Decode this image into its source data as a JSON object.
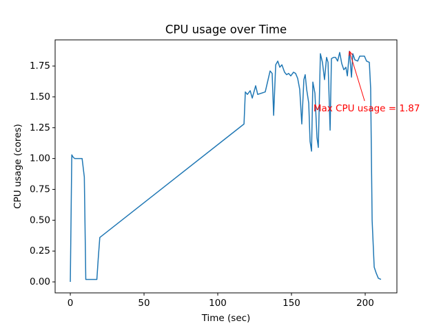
{
  "chart_data": {
    "type": "line",
    "title": "CPU usage over Time",
    "xlabel": "Time (sec)",
    "ylabel": "CPU usage (cores)",
    "x": [
      0,
      1,
      2,
      3,
      5,
      8,
      9.5,
      10.5,
      14,
      17,
      18,
      19,
      20,
      117.8,
      118.7,
      120.1,
      122.0,
      123.4,
      125.7,
      127.1,
      132.2,
      135.5,
      136.9,
      137.9,
      139.3,
      140.7,
      142.1,
      143.5,
      145.3,
      146.7,
      148.1,
      149.5,
      151.4,
      152.8,
      154.2,
      155.6,
      157.0,
      158.4,
      159.3,
      160.3,
      161.7,
      162.6,
      163.6,
      164.5,
      165.9,
      167.3,
      168.2,
      169.6,
      171.0,
      172.4,
      173.8,
      174.8,
      176.2,
      177.1,
      178.5,
      179.9,
      181.3,
      182.7,
      184.1,
      185.5,
      186.9,
      187.9,
      189.3,
      190.7,
      191.6,
      193.0,
      194.9,
      196.3,
      197.7,
      199.5,
      200.9,
      202.8,
      203.7,
      204.7,
      206.1,
      207.5,
      208.9,
      210.7
    ],
    "series": [
      {
        "name": "CPU usage",
        "color": "#1f77b4",
        "values": [
          0.0,
          1.03,
          1.01,
          1.0,
          1.0,
          1.0,
          0.85,
          0.02,
          0.02,
          0.02,
          0.02,
          0.2,
          0.36,
          1.28,
          1.54,
          1.52,
          1.55,
          1.49,
          1.59,
          1.52,
          1.54,
          1.71,
          1.69,
          1.35,
          1.76,
          1.79,
          1.74,
          1.76,
          1.7,
          1.68,
          1.69,
          1.67,
          1.7,
          1.69,
          1.65,
          1.56,
          1.28,
          1.64,
          1.68,
          1.56,
          1.45,
          1.14,
          1.06,
          1.62,
          1.53,
          1.17,
          1.09,
          1.85,
          1.78,
          1.64,
          1.82,
          1.78,
          1.23,
          1.81,
          1.82,
          1.82,
          1.79,
          1.86,
          1.77,
          1.72,
          1.74,
          1.67,
          1.87,
          1.66,
          1.85,
          1.8,
          1.79,
          1.83,
          1.83,
          1.83,
          1.79,
          1.78,
          1.57,
          0.5,
          0.12,
          0.07,
          0.03,
          0.02
        ]
      }
    ],
    "xlim": [
      -10.3,
      221.5
    ],
    "ylim": [
      -0.089,
      1.962
    ],
    "xticks": [
      0,
      50,
      100,
      150,
      200
    ],
    "yticks": [
      {
        "value": 0,
        "label": "0.00"
      },
      {
        "value": 0.25,
        "label": "0.25"
      },
      {
        "value": 0.5,
        "label": "0.50"
      },
      {
        "value": 0.75,
        "label": "0.75"
      },
      {
        "value": 1.0,
        "label": "1.00"
      },
      {
        "value": 1.25,
        "label": "1.25"
      },
      {
        "value": 1.5,
        "label": "1.50"
      },
      {
        "value": 1.75,
        "label": "1.75"
      }
    ],
    "annotation": {
      "text": "Max CPU usage = 1.87",
      "xy": [
        189.3,
        1.87
      ],
      "xytext": [
        201,
        1.4
      ],
      "color": "red"
    }
  }
}
